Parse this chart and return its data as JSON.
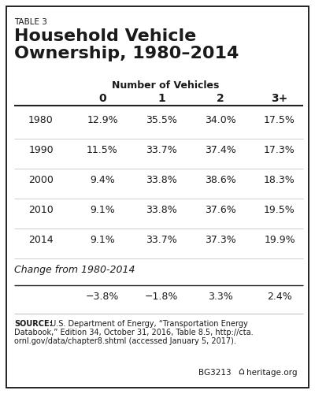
{
  "table_label": "TABLE 3",
  "title_line1": "Household Vehicle",
  "title_line2": "Ownership, 1980–2014",
  "col_header_main": "Number of Vehicles",
  "col_headers": [
    "0",
    "1",
    "2",
    "3+"
  ],
  "years": [
    "1980",
    "1990",
    "2000",
    "2010",
    "2014"
  ],
  "data": [
    [
      "12.9%",
      "35.5%",
      "34.0%",
      "17.5%"
    ],
    [
      "11.5%",
      "33.7%",
      "37.4%",
      "17.3%"
    ],
    [
      "9.4%",
      "33.8%",
      "38.6%",
      "18.3%"
    ],
    [
      "9.1%",
      "33.8%",
      "37.6%",
      "19.5%"
    ],
    [
      "9.1%",
      "33.7%",
      "37.3%",
      "19.9%"
    ]
  ],
  "change_label": "Change from 1980-2014",
  "change_values": [
    "−3.8%",
    "−1.8%",
    "3.3%",
    "2.4%"
  ],
  "source_bold": "SOURCE:",
  "source_lines": [
    " U.S. Department of Energy, “Transportation Energy",
    "Databook,” Edition 34, October 31, 2016, Table 8.5, http://cta.",
    "ornl.gov/data/chapter8.shtml (accessed January 5, 2017)."
  ],
  "footer_code": "BG3213",
  "footer_site": "heritage.org",
  "bg_color": "#ffffff",
  "border_color": "#000000",
  "line_color_dark": "#222222",
  "line_color_light": "#bbbbbb",
  "text_color": "#1a1a1a"
}
